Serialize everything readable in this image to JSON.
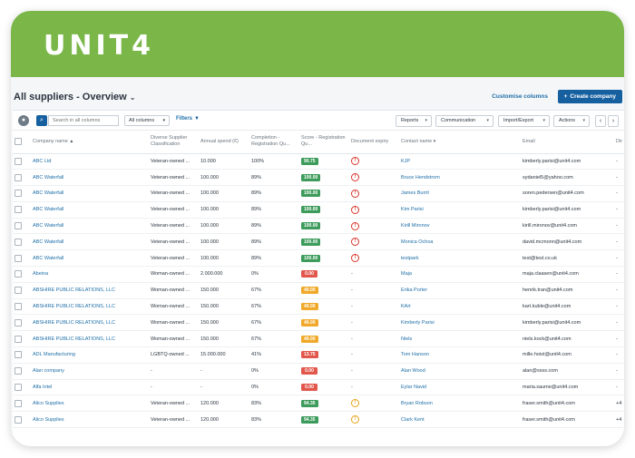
{
  "brand": {
    "logo_text": "UNIT4",
    "banner_color": "#7ab648"
  },
  "page": {
    "title": "All suppliers - Overview",
    "customise_label": "Customise columns",
    "create_label": "Create company"
  },
  "toolbar": {
    "search_placeholder": "Search in all columns",
    "columns_select": "All columns",
    "filters_label": "Filters",
    "reports_label": "Reports",
    "communication_label": "Communication",
    "import_export_label": "Import/Export",
    "actions_label": "Actions",
    "prev_label": "‹",
    "next_label": "›"
  },
  "columns": [
    "Company name",
    "Diverse Supplier Classification",
    "Annual spend (€)",
    "Completion - Registration Qu...",
    "Score - Registration Qu...",
    "Document expiry",
    "Contact name",
    "Email",
    "Dir"
  ],
  "rows": [
    {
      "company": "ABC Ltd",
      "classification": "Veteran-owned ...",
      "spend": "10.000",
      "completion": "100%",
      "score": "90.75",
      "score_color": "green",
      "doc": "error",
      "contact": "KJP",
      "email": "kimberly.parisi@unit4.com",
      "dir": "-"
    },
    {
      "company": "ABC Waterfall",
      "classification": "Veteran-owned ...",
      "spend": "100.000",
      "completion": "89%",
      "score": "100.00",
      "score_color": "green",
      "doc": "error",
      "contact": "Bruce Hendstrom",
      "email": "sydaniel5@yahoo.com",
      "dir": "-"
    },
    {
      "company": "ABC Waterfall",
      "classification": "Veteran-owned ...",
      "spend": "100.000",
      "completion": "89%",
      "score": "100.00",
      "score_color": "green",
      "doc": "error",
      "contact": "James Burrit",
      "email": "soren.pedersen@unit4.com",
      "dir": "-"
    },
    {
      "company": "ABC Waterfall",
      "classification": "Veteran-owned ...",
      "spend": "100.000",
      "completion": "89%",
      "score": "100.00",
      "score_color": "green",
      "doc": "error",
      "contact": "Kim Parisi",
      "email": "kimberly.parisi@unit4.com",
      "dir": "-"
    },
    {
      "company": "ABC Waterfall",
      "classification": "Veteran-owned ...",
      "spend": "100.000",
      "completion": "89%",
      "score": "100.00",
      "score_color": "green",
      "doc": "error",
      "contact": "Kirill Mironov",
      "email": "kirill.mironov@unit4.com",
      "dir": "-"
    },
    {
      "company": "ABC Waterfall",
      "classification": "Veteran-owned ...",
      "spend": "100.000",
      "completion": "89%",
      "score": "100.00",
      "score_color": "green",
      "doc": "error",
      "contact": "Monica Ochoa",
      "email": "david.mcmonn@unit4.com",
      "dir": "-"
    },
    {
      "company": "ABC Waterfall",
      "classification": "Veteran-owned ...",
      "spend": "100.000",
      "completion": "89%",
      "score": "100.00",
      "score_color": "green",
      "doc": "error",
      "contact": "testpark",
      "email": "test@test.co.uk",
      "dir": "-"
    },
    {
      "company": "Abeina",
      "classification": "Woman-owned ...",
      "spend": "2.000.000",
      "completion": "0%",
      "score": "0.00",
      "score_color": "red",
      "doc": "-",
      "contact": "Maja",
      "email": "maja.claasen@unit4.com",
      "dir": "-"
    },
    {
      "company": "ABSHIRE PUBLIC RELATIONS, LLC",
      "classification": "Woman-owned ...",
      "spend": "150.000",
      "completion": "67%",
      "score": "40.00",
      "score_color": "orange",
      "doc": "-",
      "contact": "Erika Porter",
      "email": "henrik.tran@unit4.com",
      "dir": "-"
    },
    {
      "company": "ABSHIRE PUBLIC RELATIONS, LLC",
      "classification": "Woman-owned ...",
      "spend": "150.000",
      "completion": "67%",
      "score": "40.00",
      "score_color": "orange",
      "doc": "-",
      "contact": "KArt",
      "email": "kart.kuble@unit4.com",
      "dir": "-"
    },
    {
      "company": "ABSHIRE PUBLIC RELATIONS, LLC",
      "classification": "Woman-owned ...",
      "spend": "150.000",
      "completion": "67%",
      "score": "40.00",
      "score_color": "orange",
      "doc": "-",
      "contact": "Kimberly Parisi",
      "email": "kimberly.parisi@unit4.com",
      "dir": "-"
    },
    {
      "company": "ABSHIRE PUBLIC RELATIONS, LLC",
      "classification": "Woman-owned ...",
      "spend": "150.000",
      "completion": "67%",
      "score": "40.00",
      "score_color": "orange",
      "doc": "-",
      "contact": "Niels",
      "email": "niels.kock@unit4.com",
      "dir": "-"
    },
    {
      "company": "ADL Manufacturing",
      "classification": "LGBTQ-owned ...",
      "spend": "15.000.000",
      "completion": "41%",
      "score": "13.75",
      "score_color": "red",
      "doc": "-",
      "contact": "Tom Hanson",
      "email": "mille.hoist@unit4.com",
      "dir": "-"
    },
    {
      "company": "Alan company",
      "classification": "-",
      "spend": "-",
      "completion": "0%",
      "score": "0.00",
      "score_color": "red",
      "doc": "-",
      "contact": "Alan Wood",
      "email": "alan@ssss.com",
      "dir": "-"
    },
    {
      "company": "Alfa Intel",
      "classification": "-",
      "spend": "-",
      "completion": "0%",
      "score": "0.00",
      "score_color": "red",
      "doc": "-",
      "contact": "Eylar Navid",
      "email": "maria.saume@unit4.com",
      "dir": "-"
    },
    {
      "company": "Alico Supplies",
      "classification": "Veteran-owned ...",
      "spend": "120.000",
      "completion": "83%",
      "score": "94.35",
      "score_color": "green",
      "doc": "warning",
      "contact": "Bryan Robson",
      "email": "fraser.smith@unit4.com",
      "dir": "+4"
    },
    {
      "company": "Alico Supplies",
      "classification": "Veteran-owned ...",
      "spend": "120.000",
      "completion": "83%",
      "score": "94.35",
      "score_color": "green",
      "doc": "warning",
      "contact": "Clark Kent",
      "email": "fraser.smith@unit4.com",
      "dir": "+4"
    }
  ]
}
